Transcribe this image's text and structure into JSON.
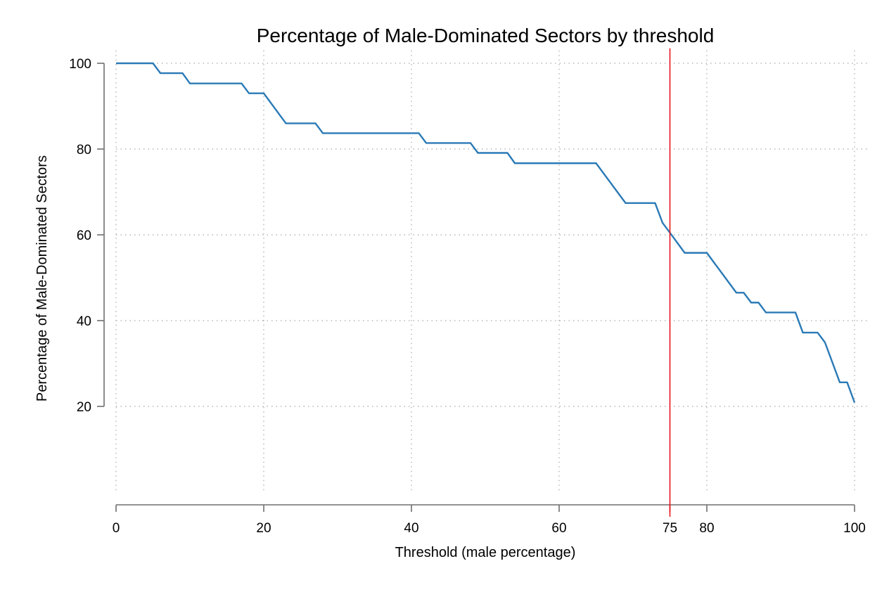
{
  "chart_data": {
    "type": "line",
    "title": "Percentage of Male-Dominated Sectors by threshold",
    "xlabel": "Threshold (male percentage)",
    "ylabel": "Percentage of Male-Dominated Sectors",
    "xlim": [
      0,
      100
    ],
    "ylim": [
      0,
      103
    ],
    "xticks": [
      0,
      20,
      40,
      60,
      80,
      100
    ],
    "yticks": [
      20,
      40,
      60,
      80,
      100
    ],
    "grid": true,
    "colors": {
      "series": "#2a7ab6",
      "reference": "#e8161d",
      "axis": "#6f6f6f",
      "grid": "#a8a8a8"
    },
    "reference_line": {
      "x": 75,
      "label": "75"
    },
    "series": [
      {
        "x": [
          0,
          5,
          6,
          9,
          10,
          17,
          18,
          20,
          23,
          27,
          28,
          41,
          42,
          48,
          49,
          53,
          54,
          65,
          69,
          73,
          74,
          75,
          77,
          80,
          84,
          85,
          86,
          87,
          88,
          92,
          93,
          95,
          96,
          98,
          99,
          100
        ],
        "y": [
          100,
          100,
          97.7,
          97.7,
          95.3,
          95.3,
          93.0,
          93.0,
          86.0,
          86.0,
          83.7,
          83.7,
          81.4,
          81.4,
          79.1,
          79.1,
          76.7,
          76.7,
          67.4,
          67.4,
          62.8,
          60.5,
          55.8,
          55.8,
          46.5,
          46.5,
          44.2,
          44.2,
          41.9,
          41.9,
          37.2,
          37.2,
          34.9,
          25.6,
          25.6,
          20.9
        ]
      }
    ]
  }
}
